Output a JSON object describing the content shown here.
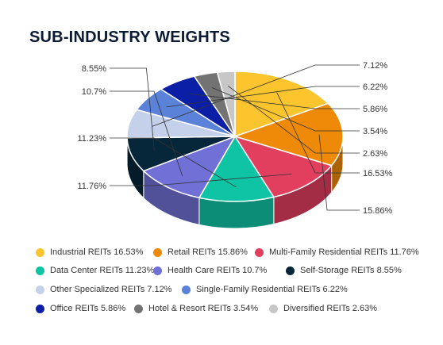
{
  "colors": {
    "Industrial REITs": "#fcc52d",
    "Retail REITs": "#ee8a07",
    "Multi-Family Residential REITs": "#e23f5f",
    "Data Center REITs": "#0fc4a5",
    "Health Care REITs": "#7070d6",
    "Self-Storage REITs": "#06263a",
    "Other Specialized REITs": "#c5d0eb",
    "Single-Family Residential REITs": "#5a82d8",
    "Office REITs": "#0a1ea6",
    "Hotel & Resort REITs": "#737373",
    "Diversified REITs": "#c7c7c7"
  },
  "chart_data": {
    "type": "pie",
    "title": "SUB-INDUSTRY WEIGHTS",
    "slices": [
      {
        "label": "Industrial REITs",
        "value": 16.53,
        "text": "16.53%",
        "legend": "Industrial REITs 16.53%"
      },
      {
        "label": "Retail REITs",
        "value": 15.86,
        "text": "15.86%",
        "legend": "Retail REITs 15.86%"
      },
      {
        "label": "Multi-Family Residential REITs",
        "value": 11.76,
        "text": "11.76%",
        "legend": "Multi-Family Residential REITs 11.76%"
      },
      {
        "label": "Data Center REITs",
        "value": 11.23,
        "text": "11.23%",
        "legend": "Data Center REITs 11.23%"
      },
      {
        "label": "Health Care REITs",
        "value": 10.7,
        "text": "10.7%",
        "legend": "Health Care REITs 10.7%"
      },
      {
        "label": "Self-Storage REITs",
        "value": 8.55,
        "text": "8.55%",
        "legend": "Self-Storage REITs 8.55%"
      },
      {
        "label": "Other Specialized REITs",
        "value": 7.12,
        "text": "7.12%",
        "legend": "Other Specialized REITs 7.12%"
      },
      {
        "label": "Single-Family Residential REITs",
        "value": 6.22,
        "text": "6.22%",
        "legend": "Single-Family Residential REITs 6.22%"
      },
      {
        "label": "Office REITs",
        "value": 5.86,
        "text": "5.86%",
        "legend": "Office REITs 5.86%"
      },
      {
        "label": "Hotel & Resort REITs",
        "value": 3.54,
        "text": "3.54%",
        "legend": "Hotel & Resort REITs 3.54%"
      },
      {
        "label": "Diversified REITs",
        "value": 2.63,
        "text": "2.63%",
        "legend": "Diversified REITs 2.63%"
      }
    ],
    "legend_placement": "bottom"
  }
}
